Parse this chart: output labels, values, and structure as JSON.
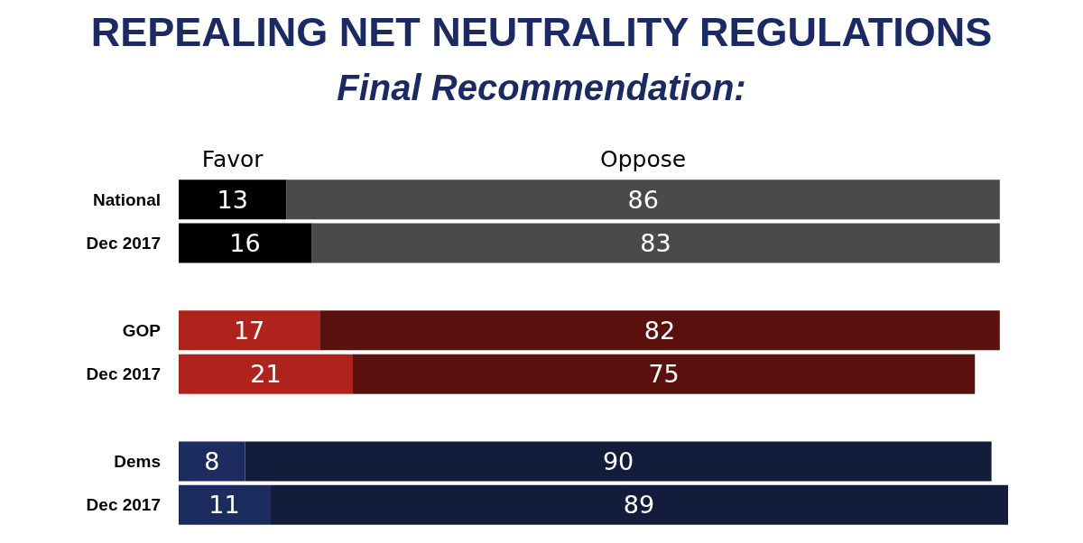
{
  "chart_data": {
    "type": "bar",
    "orientation": "horizontal",
    "stacked": true,
    "data_labels": true,
    "title": "REPEALING NET NEUTRALITY REGULATIONS",
    "subtitle": "Final Recommendation:",
    "categories": [
      "National",
      "Dec 2017",
      null,
      "GOP",
      "Dec 2017",
      null,
      "Dems",
      "Dec 2017"
    ],
    "series": [
      {
        "name": "Favor",
        "colors": [
          "#000000",
          "#000000",
          null,
          "#b0231d",
          "#b0231d",
          null,
          "#1d2c5e",
          "#1d2c5e"
        ],
        "values": [
          13,
          16,
          null,
          17,
          21,
          null,
          8,
          11
        ]
      },
      {
        "name": "Oppose",
        "colors": [
          "#4a4a4a",
          "#4a4a4a",
          null,
          "#5a110e",
          "#5a110e",
          null,
          "#141c3c",
          "#141c3c"
        ],
        "values": [
          86,
          83,
          null,
          82,
          75,
          null,
          90,
          89
        ]
      }
    ]
  }
}
